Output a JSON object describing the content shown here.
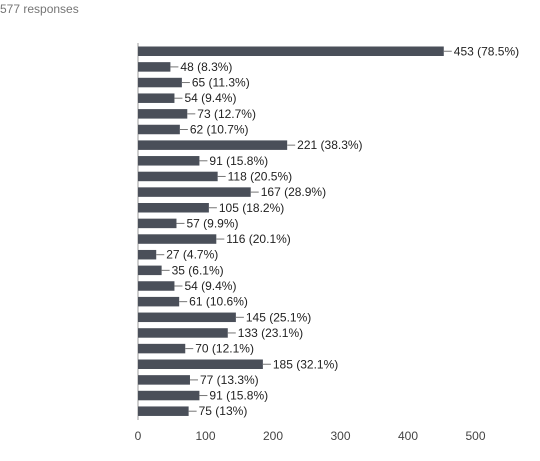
{
  "header": {
    "responses_text": "577 responses"
  },
  "chart_data": {
    "type": "bar",
    "orientation": "horizontal",
    "bar_color": "#4a4f59",
    "xlim": [
      0,
      500
    ],
    "xticks": [
      0,
      100,
      200,
      300,
      400,
      500
    ],
    "grid": false,
    "values": [
      453,
      48,
      65,
      54,
      73,
      62,
      221,
      91,
      118,
      167,
      105,
      57,
      116,
      27,
      35,
      54,
      61,
      145,
      133,
      70,
      185,
      77,
      91,
      75
    ],
    "labels": [
      "453 (78.5%)",
      "48 (8.3%)",
      "65 (11.3%)",
      "54 (9.4%)",
      "73 (12.7%)",
      "62 (10.7%)",
      "221 (38.3%)",
      "91 (15.8%)",
      "118 (20.5%)",
      "167 (28.9%)",
      "105 (18.2%)",
      "57 (9.9%)",
      "116 (20.1%)",
      "27 (4.7%)",
      "35 (6.1%)",
      "54 (9.4%)",
      "61 (10.6%)",
      "145 (25.1%)",
      "133 (23.1%)",
      "70 (12.1%)",
      "185 (32.1%)",
      "77 (13.3%)",
      "91 (15.8%)",
      "75 (13%)"
    ]
  }
}
